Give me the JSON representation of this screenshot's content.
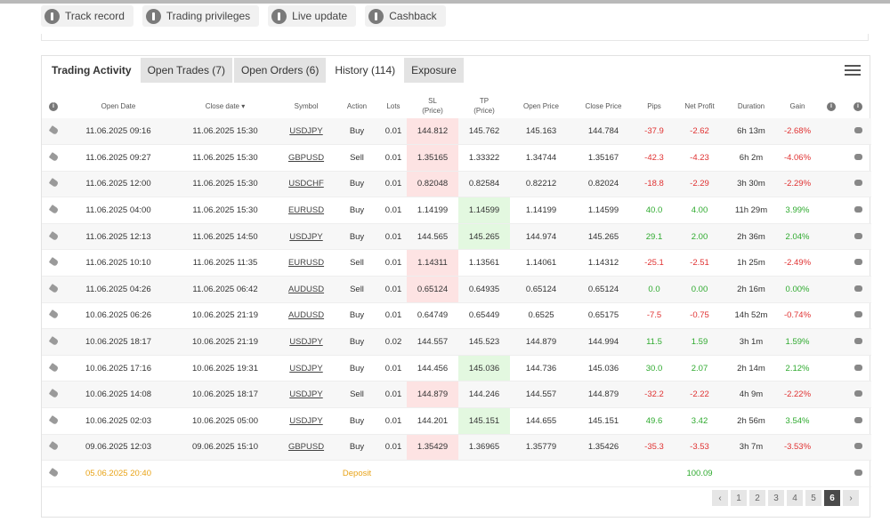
{
  "top_buttons": [
    {
      "label": "Track record",
      "icon": "info-icon"
    },
    {
      "label": "Trading privileges",
      "icon": "info-icon"
    },
    {
      "label": "Live update",
      "icon": "info-icon"
    },
    {
      "label": "Cashback",
      "icon": "info-icon"
    }
  ],
  "tabs": [
    {
      "label": "Trading Activity"
    },
    {
      "label": "Open Trades (7)"
    },
    {
      "label": "Open Orders (6)"
    },
    {
      "label": "History (114)"
    },
    {
      "label": "Exposure"
    }
  ],
  "headers": {
    "open_date": "Open Date",
    "close_date": "Close date ▾",
    "symbol": "Symbol",
    "action": "Action",
    "lots": "Lots",
    "sl": "SL",
    "sl_sub": "(Price)",
    "tp": "TP",
    "tp_sub": "(Price)",
    "open_price": "Open Price",
    "close_price": "Close Price",
    "pips": "Pips",
    "net_profit": "Net Profit",
    "duration": "Duration",
    "gain": "Gain"
  },
  "rows": [
    {
      "open": "11.06.2025 09:16",
      "close": "11.06.2025 15:30",
      "symbol": "USDJPY",
      "action": "Buy",
      "lots": "0.01",
      "sl": "144.812",
      "tp": "145.762",
      "open_price": "145.163",
      "close_price": "144.784",
      "pips": "-37.9",
      "profit": "-2.62",
      "duration": "6h 13m",
      "gain": "-2.68%",
      "hl": "sl",
      "sign": "neg"
    },
    {
      "open": "11.06.2025 09:27",
      "close": "11.06.2025 15:30",
      "symbol": "GBPUSD",
      "action": "Sell",
      "lots": "0.01",
      "sl": "1.35165",
      "tp": "1.33322",
      "open_price": "1.34744",
      "close_price": "1.35167",
      "pips": "-42.3",
      "profit": "-4.23",
      "duration": "6h 2m",
      "gain": "-4.06%",
      "hl": "sl",
      "sign": "neg"
    },
    {
      "open": "11.06.2025 12:00",
      "close": "11.06.2025 15:30",
      "symbol": "USDCHF",
      "action": "Buy",
      "lots": "0.01",
      "sl": "0.82048",
      "tp": "0.82584",
      "open_price": "0.82212",
      "close_price": "0.82024",
      "pips": "-18.8",
      "profit": "-2.29",
      "duration": "3h 30m",
      "gain": "-2.29%",
      "hl": "sl",
      "sign": "neg"
    },
    {
      "open": "11.06.2025 04:00",
      "close": "11.06.2025 15:30",
      "symbol": "EURUSD",
      "action": "Buy",
      "lots": "0.01",
      "sl": "1.14199",
      "tp": "1.14599",
      "open_price": "1.14199",
      "close_price": "1.14599",
      "pips": "40.0",
      "profit": "4.00",
      "duration": "11h 29m",
      "gain": "3.99%",
      "hl": "tp",
      "sign": "pos"
    },
    {
      "open": "11.06.2025 12:13",
      "close": "11.06.2025 14:50",
      "symbol": "USDJPY",
      "action": "Buy",
      "lots": "0.01",
      "sl": "144.565",
      "tp": "145.265",
      "open_price": "144.974",
      "close_price": "145.265",
      "pips": "29.1",
      "profit": "2.00",
      "duration": "2h 36m",
      "gain": "2.04%",
      "hl": "tp",
      "sign": "pos"
    },
    {
      "open": "11.06.2025 10:10",
      "close": "11.06.2025 11:35",
      "symbol": "EURUSD",
      "action": "Sell",
      "lots": "0.01",
      "sl": "1.14311",
      "tp": "1.13561",
      "open_price": "1.14061",
      "close_price": "1.14312",
      "pips": "-25.1",
      "profit": "-2.51",
      "duration": "1h 25m",
      "gain": "-2.49%",
      "hl": "sl",
      "sign": "neg"
    },
    {
      "open": "11.06.2025 04:26",
      "close": "11.06.2025 06:42",
      "symbol": "AUDUSD",
      "action": "Sell",
      "lots": "0.01",
      "sl": "0.65124",
      "tp": "0.64935",
      "open_price": "0.65124",
      "close_price": "0.65124",
      "pips": "0.0",
      "profit": "0.00",
      "duration": "2h 16m",
      "gain": "0.00%",
      "hl": "sl",
      "sign": "pos"
    },
    {
      "open": "10.06.2025 06:26",
      "close": "10.06.2025 21:19",
      "symbol": "AUDUSD",
      "action": "Buy",
      "lots": "0.01",
      "sl": "0.64749",
      "tp": "0.65449",
      "open_price": "0.6525",
      "close_price": "0.65175",
      "pips": "-7.5",
      "profit": "-0.75",
      "duration": "14h 52m",
      "gain": "-0.74%",
      "hl": "",
      "sign": "neg"
    },
    {
      "open": "10.06.2025 18:17",
      "close": "10.06.2025 21:19",
      "symbol": "USDJPY",
      "action": "Buy",
      "lots": "0.02",
      "sl": "144.557",
      "tp": "145.523",
      "open_price": "144.879",
      "close_price": "144.994",
      "pips": "11.5",
      "profit": "1.59",
      "duration": "3h 1m",
      "gain": "1.59%",
      "hl": "",
      "sign": "pos"
    },
    {
      "open": "10.06.2025 17:16",
      "close": "10.06.2025 19:31",
      "symbol": "USDJPY",
      "action": "Buy",
      "lots": "0.01",
      "sl": "144.456",
      "tp": "145.036",
      "open_price": "144.736",
      "close_price": "145.036",
      "pips": "30.0",
      "profit": "2.07",
      "duration": "2h 14m",
      "gain": "2.12%",
      "hl": "tp",
      "sign": "pos"
    },
    {
      "open": "10.06.2025 14:08",
      "close": "10.06.2025 18:17",
      "symbol": "USDJPY",
      "action": "Sell",
      "lots": "0.01",
      "sl": "144.879",
      "tp": "144.246",
      "open_price": "144.557",
      "close_price": "144.879",
      "pips": "-32.2",
      "profit": "-2.22",
      "duration": "4h 9m",
      "gain": "-2.22%",
      "hl": "sl",
      "sign": "neg"
    },
    {
      "open": "10.06.2025 02:03",
      "close": "10.06.2025 05:00",
      "symbol": "USDJPY",
      "action": "Buy",
      "lots": "0.01",
      "sl": "144.201",
      "tp": "145.151",
      "open_price": "144.655",
      "close_price": "145.151",
      "pips": "49.6",
      "profit": "3.42",
      "duration": "2h 56m",
      "gain": "3.54%",
      "hl": "tp",
      "sign": "pos"
    },
    {
      "open": "09.06.2025 12:03",
      "close": "09.06.2025 15:10",
      "symbol": "GBPUSD",
      "action": "Buy",
      "lots": "0.01",
      "sl": "1.35429",
      "tp": "1.36965",
      "open_price": "1.35779",
      "close_price": "1.35426",
      "pips": "-35.3",
      "profit": "-3.53",
      "duration": "3h 7m",
      "gain": "-3.53%",
      "hl": "sl",
      "sign": "neg"
    }
  ],
  "deposit_row": {
    "open": "05.06.2025 20:40",
    "action": "Deposit",
    "profit": "100.09"
  },
  "pagination": {
    "prev": "‹",
    "pages": [
      "1",
      "2",
      "3",
      "4",
      "5",
      "6"
    ],
    "current": "6",
    "next": "›"
  },
  "colors": {
    "negative": "#e03232",
    "positive": "#2faa2f",
    "deposit": "#e8a317",
    "sl_highlight": "#fde3e3",
    "tp_highlight": "#e3f8e0"
  }
}
